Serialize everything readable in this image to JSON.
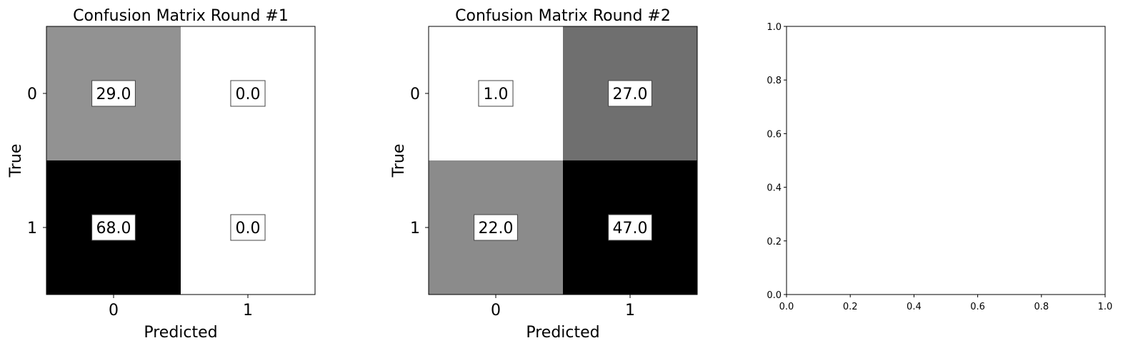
{
  "chart_data": [
    {
      "type": "heatmap",
      "title": "Confusion Matrix Round #1",
      "xlabel": "Predicted",
      "ylabel": "True",
      "x_categories": [
        "0",
        "1"
      ],
      "y_categories": [
        "0",
        "1"
      ],
      "values": [
        [
          29.0,
          0.0
        ],
        [
          68.0,
          0.0
        ]
      ],
      "cell_labels": [
        [
          "29.0",
          "0.0"
        ],
        [
          "68.0",
          "0.0"
        ]
      ],
      "colormap": "gray_r"
    },
    {
      "type": "heatmap",
      "title": "Confusion Matrix Round #2",
      "xlabel": "Predicted",
      "ylabel": "True",
      "x_categories": [
        "0",
        "1"
      ],
      "y_categories": [
        "0",
        "1"
      ],
      "values": [
        [
          1.0,
          27.0
        ],
        [
          22.0,
          47.0
        ]
      ],
      "cell_labels": [
        [
          "1.0",
          "27.0"
        ],
        [
          "22.0",
          "47.0"
        ]
      ],
      "colormap": "gray_r"
    },
    {
      "type": "scatter",
      "title": "",
      "xlabel": "",
      "ylabel": "",
      "xlim": [
        0.0,
        1.0
      ],
      "ylim": [
        0.0,
        1.0
      ],
      "x_ticks": [
        "0.0",
        "0.2",
        "0.4",
        "0.6",
        "0.8",
        "1.0"
      ],
      "y_ticks": [
        "0.0",
        "0.2",
        "0.4",
        "0.6",
        "0.8",
        "1.0"
      ],
      "series": []
    }
  ]
}
